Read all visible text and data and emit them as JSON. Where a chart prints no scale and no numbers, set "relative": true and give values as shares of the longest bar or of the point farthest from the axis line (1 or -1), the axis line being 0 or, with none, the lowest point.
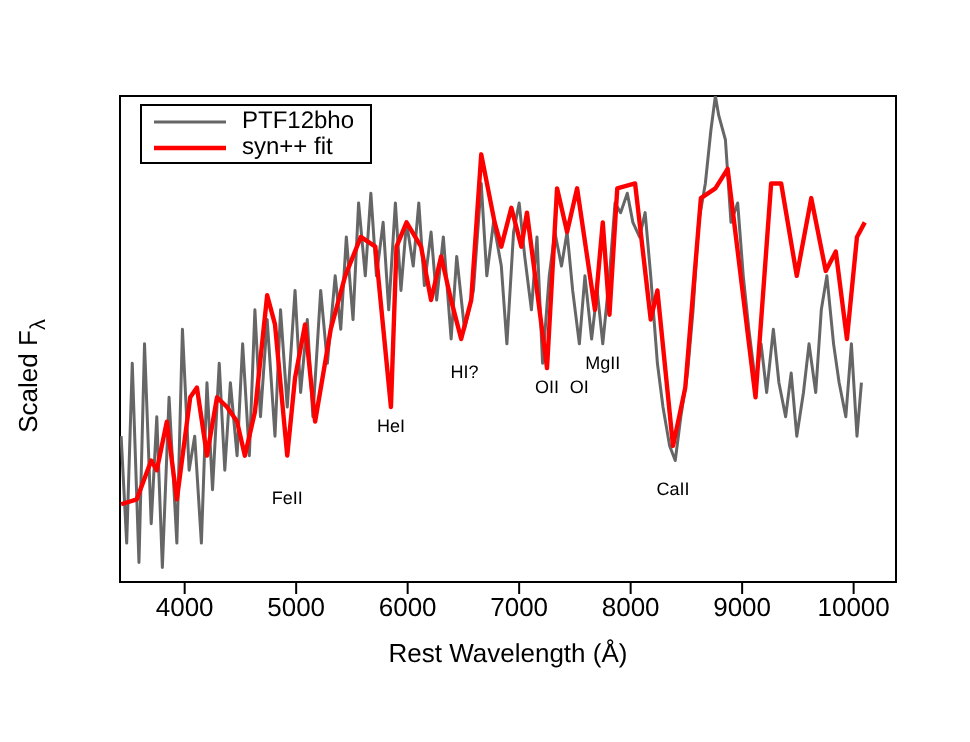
{
  "chart_data": {
    "type": "line",
    "relative": true,
    "xlabel": "Rest Wavelength (Å)",
    "ylabel": "Scaled F$_{λ}$",
    "xlim": [
      3420,
      10380
    ],
    "xticks": [
      4000,
      5000,
      6000,
      7000,
      8000,
      9000,
      10000
    ],
    "grid": false,
    "legend": "top left",
    "marker": "none",
    "line_style": "solid",
    "series": [
      {
        "name": "PTF12bho",
        "color": "#666666",
        "x": [
          3430,
          3480,
          3530,
          3590,
          3640,
          3700,
          3750,
          3800,
          3860,
          3930,
          3980,
          4040,
          4090,
          4150,
          4200,
          4250,
          4310,
          4360,
          4410,
          4470,
          4520,
          4580,
          4630,
          4680,
          4740,
          4810,
          4860,
          4920,
          4990,
          5040,
          5100,
          5150,
          5220,
          5280,
          5350,
          5400,
          5450,
          5510,
          5560,
          5620,
          5670,
          5720,
          5780,
          5830,
          5890,
          5940,
          5990,
          6050,
          6100,
          6150,
          6210,
          6260,
          6320,
          6390,
          6440,
          6510,
          6590,
          6660,
          6710,
          6770,
          6840,
          6890,
          6950,
          7000,
          7050,
          7110,
          7160,
          7210,
          7270,
          7320,
          7380,
          7430,
          7480,
          7540,
          7590,
          7650,
          7700,
          7750,
          7810,
          7860,
          7910,
          7970,
          8020,
          8080,
          8130,
          8180,
          8240,
          8290,
          8350,
          8400,
          8450,
          8510,
          8560,
          8610,
          8670,
          8720,
          8760,
          8790,
          8850,
          8900,
          8960,
          9010,
          9060,
          9120,
          9170,
          9220,
          9280,
          9330,
          9390,
          9440,
          9490,
          9550,
          9600,
          9660,
          9710,
          9760,
          9820,
          9870,
          9930,
          9980,
          10030,
          10070
        ],
        "values": [
          0.3,
          0.08,
          0.45,
          0.04,
          0.49,
          0.12,
          0.34,
          0.03,
          0.38,
          0.08,
          0.52,
          0.23,
          0.3,
          0.08,
          0.41,
          0.19,
          0.45,
          0.23,
          0.41,
          0.26,
          0.49,
          0.26,
          0.56,
          0.34,
          0.54,
          0.3,
          0.56,
          0.36,
          0.6,
          0.39,
          0.54,
          0.34,
          0.6,
          0.45,
          0.63,
          0.52,
          0.71,
          0.54,
          0.78,
          0.63,
          0.8,
          0.63,
          0.74,
          0.56,
          0.78,
          0.6,
          0.74,
          0.65,
          0.78,
          0.61,
          0.72,
          0.58,
          0.71,
          0.5,
          0.67,
          0.52,
          0.6,
          0.82,
          0.63,
          0.74,
          0.65,
          0.49,
          0.72,
          0.78,
          0.67,
          0.56,
          0.71,
          0.45,
          0.63,
          0.72,
          0.65,
          0.72,
          0.6,
          0.49,
          0.63,
          0.5,
          0.6,
          0.49,
          0.63,
          0.78,
          0.76,
          0.8,
          0.74,
          0.71,
          0.76,
          0.63,
          0.45,
          0.36,
          0.28,
          0.25,
          0.34,
          0.43,
          0.56,
          0.74,
          0.82,
          0.93,
          1,
          0.96,
          0.91,
          0.74,
          0.78,
          0.63,
          0.52,
          0.41,
          0.49,
          0.39,
          0.52,
          0.41,
          0.34,
          0.43,
          0.3,
          0.39,
          0.49,
          0.39,
          0.56,
          0.63,
          0.49,
          0.41,
          0.34,
          0.49,
          0.3,
          0.41
        ]
      },
      {
        "name": "syn++ fit",
        "color": "#ff0000",
        "x": [
          3430,
          3570,
          3700,
          3750,
          3840,
          3930,
          4050,
          4110,
          4200,
          4290,
          4380,
          4470,
          4540,
          4630,
          4740,
          4810,
          4920,
          4990,
          5080,
          5170,
          5310,
          5440,
          5580,
          5710,
          5850,
          5900,
          5990,
          6120,
          6210,
          6300,
          6390,
          6480,
          6570,
          6660,
          6780,
          6840,
          6930,
          7020,
          7070,
          7250,
          7340,
          7430,
          7520,
          7680,
          7750,
          7810,
          7880,
          8040,
          8180,
          8240,
          8380,
          8490,
          8630,
          8760,
          8870,
          9120,
          9260,
          9350,
          9490,
          9620,
          9750,
          9840,
          9940,
          10030,
          10100
        ],
        "values": [
          0.16,
          0.17,
          0.25,
          0.23,
          0.33,
          0.17,
          0.38,
          0.4,
          0.26,
          0.38,
          0.36,
          0.33,
          0.26,
          0.35,
          0.59,
          0.53,
          0.26,
          0.42,
          0.53,
          0.33,
          0.52,
          0.63,
          0.71,
          0.69,
          0.36,
          0.69,
          0.74,
          0.69,
          0.58,
          0.67,
          0.58,
          0.5,
          0.58,
          0.88,
          0.74,
          0.69,
          0.77,
          0.69,
          0.76,
          0.44,
          0.81,
          0.72,
          0.81,
          0.56,
          0.74,
          0.55,
          0.81,
          0.82,
          0.54,
          0.6,
          0.28,
          0.4,
          0.79,
          0.81,
          0.85,
          0.38,
          0.82,
          0.82,
          0.63,
          0.79,
          0.64,
          0.68,
          0.5,
          0.71,
          0.74
        ]
      }
    ],
    "annotations": [
      {
        "text": "FeII",
        "x": 4920,
        "y": 0.26
      },
      {
        "text": "HeI",
        "x": 5850,
        "y": 0.36
      },
      {
        "text": "HI?",
        "x": 6510,
        "y": 0.52
      },
      {
        "text": "OII",
        "x": 7250,
        "y": 0.44
      },
      {
        "text": "OI",
        "x": 7540,
        "y": 0.49
      },
      {
        "text": "MgII",
        "x": 7750,
        "y": 0.49
      },
      {
        "text": "CaII",
        "x": 8380,
        "y": 0.28
      }
    ]
  }
}
